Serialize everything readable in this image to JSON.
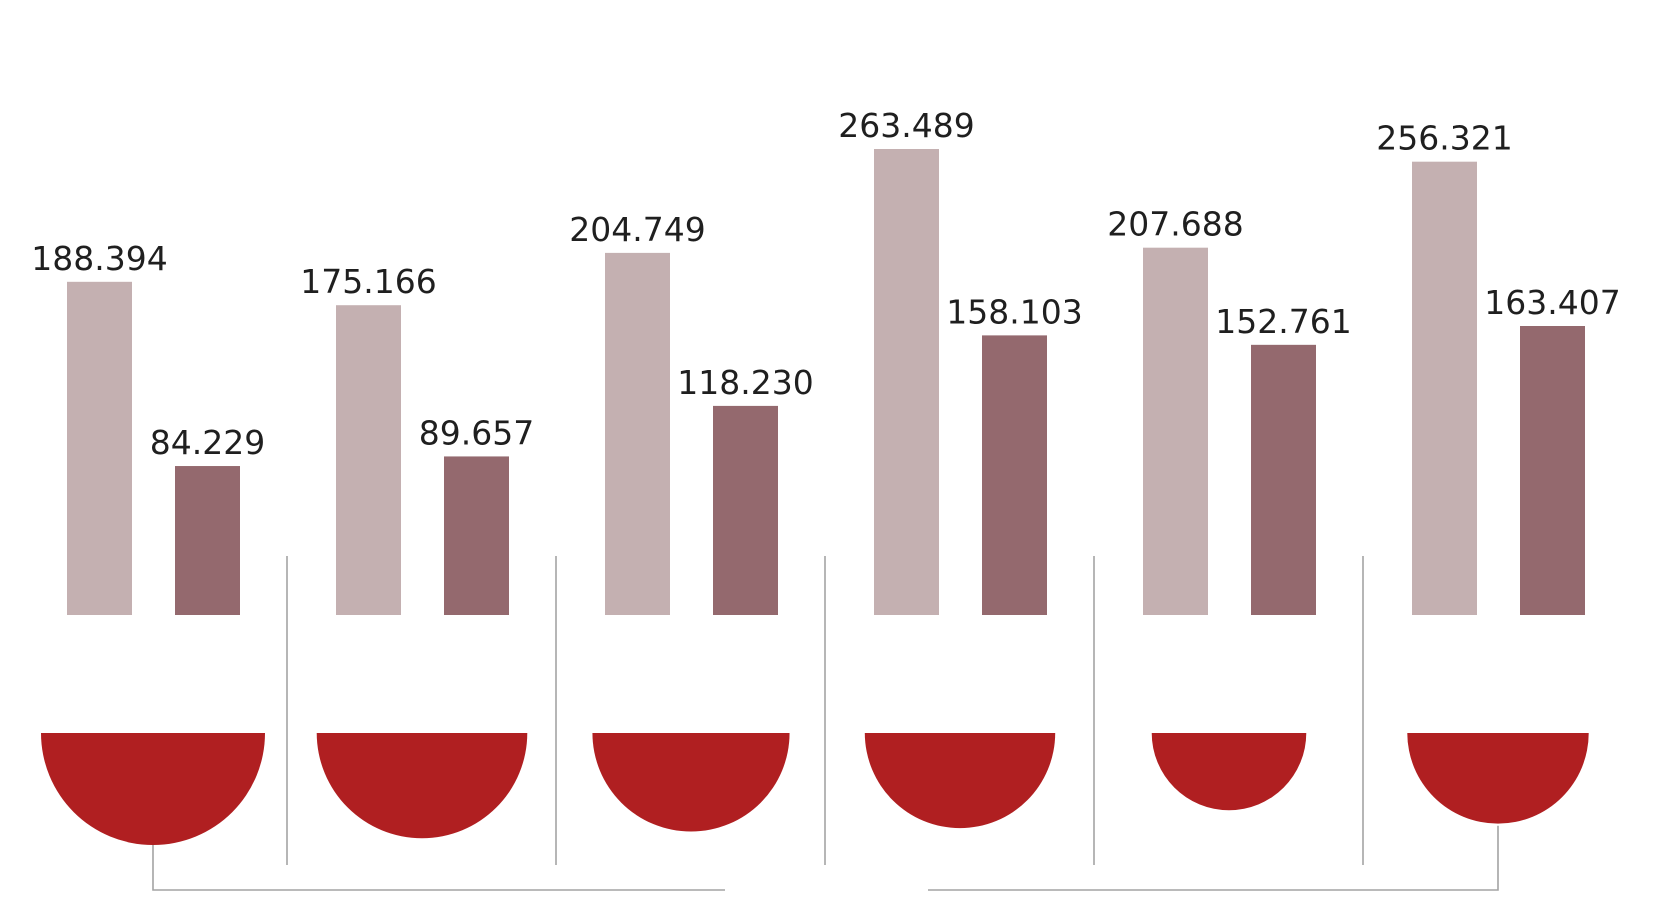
{
  "chart_data": {
    "type": "bar",
    "title": "",
    "xlabel": "",
    "ylabel": "",
    "categories": [
      "",
      "",
      "",
      "",
      "",
      ""
    ],
    "series": [
      {
        "values": [
          188394,
          175166,
          204749,
          263489,
          207688,
          256321
        ]
      },
      {
        "values": [
          84229,
          89657,
          118230,
          158103,
          152761,
          163407
        ]
      }
    ],
    "value_labels": [
      [
        "188.394",
        "175.166",
        "204.749",
        "263.489",
        "207.688",
        "256.321"
      ],
      [
        "84.229",
        "89.657",
        "118.230",
        "158.103",
        "152.761",
        "163.407"
      ]
    ],
    "semicircle_relative_sizes": [
      1.0,
      0.94,
      0.88,
      0.85,
      0.69,
      0.81
    ],
    "ylim": [
      0,
      263489
    ],
    "grid": false,
    "legend": "none",
    "colors": {
      "series_light": "#c4b0b1",
      "series_dark": "#94696e",
      "semicircle": "#b01f21",
      "separator": "#a3a3a3"
    }
  }
}
